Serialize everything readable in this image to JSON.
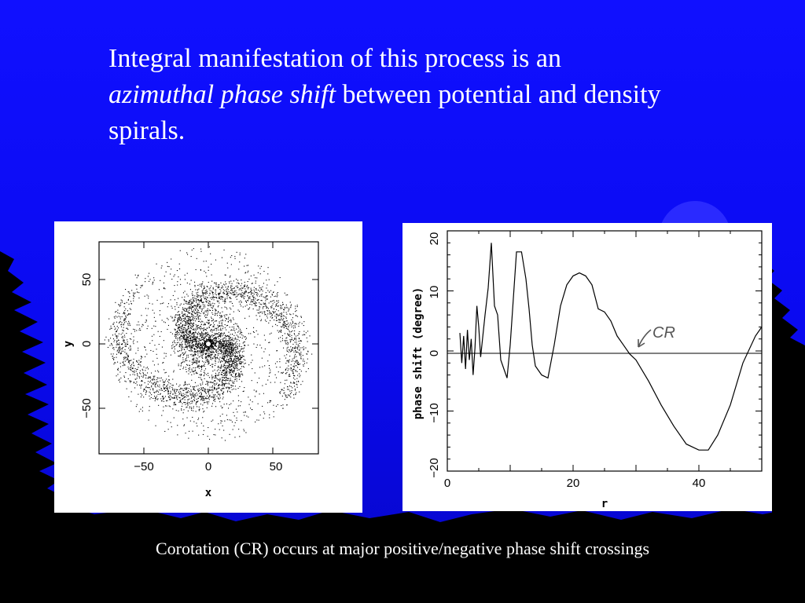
{
  "slide": {
    "heading_line1": "Integral manifestation of this process is an",
    "heading_italic": "azimuthal phase shift",
    "heading_line2_rest": " between potential and density",
    "heading_line3": "spirals.",
    "caption": "Corotation (CR) occurs at major positive/negative phase shift crossings"
  },
  "left_plot": {
    "description_type": "particle scatter of spiral galaxy",
    "xlabel": "x",
    "ylabel": "y",
    "x_ticks": [
      "−50",
      "0",
      "50"
    ],
    "y_ticks": [
      "−50",
      "0",
      "50"
    ],
    "xlim": [
      -85,
      85
    ],
    "ylim": [
      -85,
      85
    ]
  },
  "right_plot": {
    "xlabel": "r",
    "ylabel": "phase shift (degree)",
    "x_ticks": [
      "0",
      "20",
      "40"
    ],
    "y_ticks": [
      "−20",
      "−10",
      "0",
      "10",
      "20"
    ],
    "annotation": "CR",
    "xlim": [
      0,
      50
    ],
    "ylim": [
      -20,
      20
    ]
  },
  "chart_data": {
    "type": "line",
    "xlabel": "r",
    "ylabel": "phase shift (degree)",
    "xlim": [
      0,
      50
    ],
    "ylim": [
      -20,
      20
    ],
    "series": [
      {
        "x": [
          2.0,
          2.3,
          2.6,
          2.9,
          3.2,
          3.5,
          3.8,
          4.1,
          4.4,
          4.7,
          5.0,
          5.3,
          5.6,
          6.0,
          6.5,
          7.0,
          7.5,
          8.0,
          8.5,
          9.0,
          9.5,
          10.0,
          11.0,
          11.8,
          12.5,
          13.0,
          13.5,
          14.0,
          15.0,
          16.0,
          17.0,
          18.0,
          19.0,
          20.0,
          21.0,
          22.0,
          23.0,
          24.0,
          25.0,
          26.0,
          27.0,
          28.0,
          29.0,
          30.0,
          32.0,
          34.0,
          36.0,
          38.0,
          40.0,
          41.5,
          43.0,
          45.0,
          47.0,
          49.0,
          50.0
        ],
        "y": [
          3.0,
          -2.0,
          2.5,
          -3.0,
          3.5,
          -1.5,
          2.0,
          -4.0,
          0.5,
          7.5,
          4.0,
          -1.0,
          2.0,
          6.0,
          10.5,
          18.0,
          7.5,
          6.0,
          -1.5,
          -3.0,
          -4.5,
          1.0,
          16.5,
          16.5,
          12.0,
          7.0,
          1.0,
          -2.5,
          -4.0,
          -4.5,
          1.0,
          7.5,
          11.0,
          12.5,
          13.0,
          12.5,
          11.0,
          7.0,
          6.5,
          5.0,
          2.5,
          1.0,
          -0.5,
          -1.5,
          -5.0,
          -9.0,
          -12.5,
          -15.5,
          -16.5,
          -16.5,
          -14.0,
          -9.0,
          -2.0,
          2.5,
          4.0
        ]
      }
    ],
    "annotations": [
      {
        "text": "CR",
        "x": 30
      }
    ]
  }
}
